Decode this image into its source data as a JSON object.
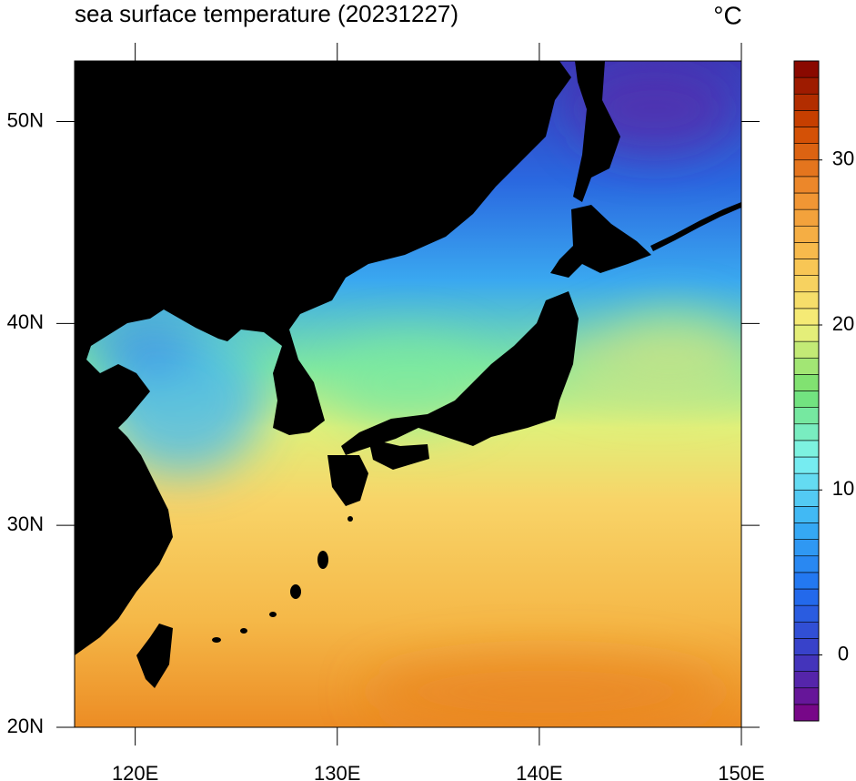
{
  "chart_data": {
    "type": "map",
    "title": "sea surface temperature (20231227)",
    "units": "°C",
    "xlim": [
      117,
      150
    ],
    "xticks": [
      {
        "value": 120,
        "label": "120E"
      },
      {
        "value": 130,
        "label": "130E"
      },
      {
        "value": 140,
        "label": "140E"
      },
      {
        "value": 150,
        "label": "150E"
      }
    ],
    "ylim": [
      20,
      53
    ],
    "yticks": [
      {
        "value": 20,
        "label": "20N"
      },
      {
        "value": 30,
        "label": "30N"
      },
      {
        "value": 40,
        "label": "40N"
      },
      {
        "value": 50,
        "label": "50N"
      }
    ],
    "colorbar": {
      "lim": [
        -4,
        36
      ],
      "ticks": [
        0,
        10,
        20,
        30
      ],
      "colors": [
        "#7f007f",
        "#3b3bc4",
        "#2070f0",
        "#38b0f5",
        "#7ff5f0",
        "#70e070",
        "#f5f07a",
        "#f8c050",
        "#f09030",
        "#d04800",
        "#800000"
      ]
    }
  }
}
